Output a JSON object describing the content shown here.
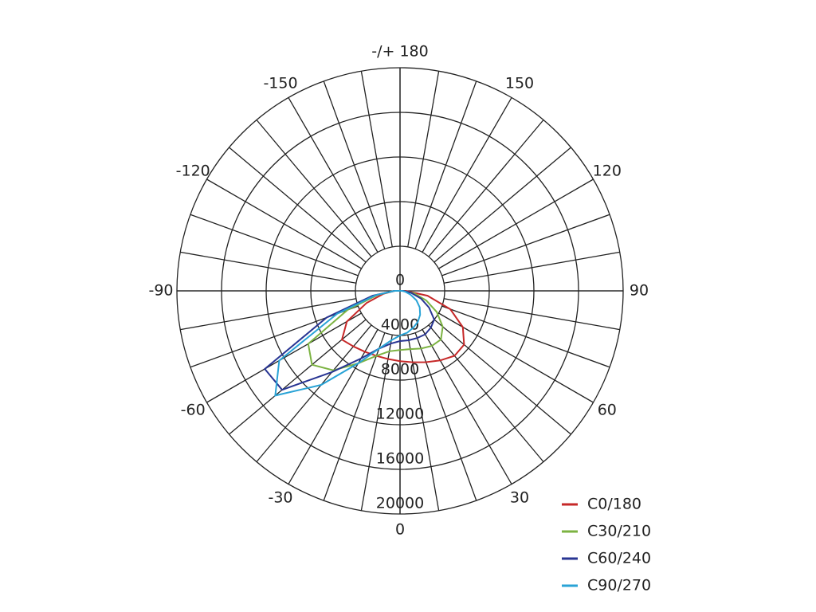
{
  "chart_data": {
    "type": "polar",
    "rlim": [
      0,
      20000
    ],
    "rticks": [
      0,
      4000,
      8000,
      12000,
      16000,
      20000
    ],
    "theta_ticks": [
      {
        "value": 180,
        "label": "-/+ 180"
      },
      150,
      120,
      90,
      60,
      30,
      0,
      -30,
      -60,
      -90,
      -120,
      -150
    ],
    "x": [
      -90,
      -80,
      -70,
      -60,
      -50,
      -40,
      -30,
      -20,
      -10,
      0,
      10,
      20,
      30,
      40,
      50,
      60,
      70,
      80,
      90
    ],
    "series": [
      {
        "name": "C0/180",
        "color": "#c62828",
        "values": [
          500,
          1500,
          3200,
          5500,
          6800,
          6500,
          6300,
          6200,
          6200,
          6300,
          6500,
          6800,
          7200,
          7600,
          7500,
          6500,
          4800,
          2500,
          500
        ]
      },
      {
        "name": "C30/210",
        "color": "#7cb342",
        "values": [
          500,
          2000,
          5000,
          9500,
          10300,
          9300,
          7500,
          6200,
          5500,
          5300,
          5300,
          5500,
          5700,
          5700,
          5000,
          3800,
          2500,
          1300,
          300
        ]
      },
      {
        "name": "C60/240",
        "color": "#283593",
        "values": [
          500,
          2500,
          7000,
          14000,
          13800,
          9500,
          7000,
          5500,
          4800,
          4500,
          4500,
          4500,
          4500,
          4300,
          4000,
          3000,
          2000,
          1000,
          300
        ]
      },
      {
        "name": "C90/270",
        "color": "#29a3d6",
        "values": [
          500,
          2200,
          6000,
          12500,
          14600,
          11000,
          7500,
          5500,
          4500,
          4000,
          3800,
          3500,
          3200,
          2800,
          2300,
          1700,
          1000,
          500,
          200
        ]
      }
    ]
  }
}
